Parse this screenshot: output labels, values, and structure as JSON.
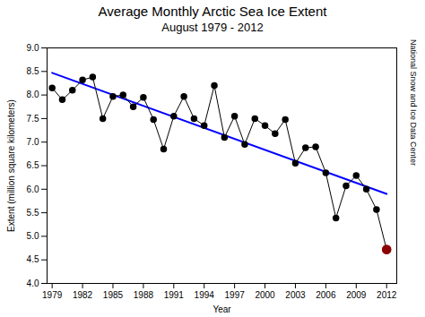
{
  "chart_data": {
    "type": "line",
    "title": "Average Monthly Arctic Sea Ice Extent",
    "subtitle": "August 1979 - 2012",
    "x_label": "Year",
    "y_label": "Extent (million square kilometers)",
    "annotation": "National Snow and Ice Data Center",
    "x": [
      1979,
      1980,
      1981,
      1982,
      1983,
      1984,
      1985,
      1986,
      1987,
      1988,
      1989,
      1990,
      1991,
      1992,
      1993,
      1994,
      1995,
      1996,
      1997,
      1998,
      1999,
      2000,
      2001,
      2002,
      2003,
      2004,
      2005,
      2006,
      2007,
      2008,
      2009,
      2010,
      2011,
      2012
    ],
    "series": [
      {
        "color": "#000000",
        "marker": "circle",
        "values": [
          8.15,
          7.9,
          8.1,
          8.32,
          8.38,
          7.5,
          7.97,
          8.0,
          7.75,
          7.95,
          7.48,
          6.85,
          7.55,
          7.97,
          7.5,
          7.35,
          8.2,
          7.1,
          7.55,
          6.95,
          7.5,
          7.35,
          7.18,
          7.48,
          6.55,
          6.88,
          6.9,
          6.35,
          5.39,
          6.07,
          6.29,
          6.0,
          5.57,
          4.72
        ],
        "colors": [
          "#000000",
          "#000000",
          "#000000",
          "#000000",
          "#000000",
          "#000000",
          "#000000",
          "#000000",
          "#000000",
          "#000000",
          "#000000",
          "#000000",
          "#000000",
          "#000000",
          "#000000",
          "#000000",
          "#000000",
          "#000000",
          "#000000",
          "#000000",
          "#000000",
          "#000000",
          "#000000",
          "#000000",
          "#000000",
          "#000000",
          "#000000",
          "#000000",
          "#000000",
          "#000000",
          "#000000",
          "#000000",
          "#000000",
          "#8B0000"
        ]
      },
      {
        "color": "#0000FF",
        "x": [
          1979,
          2012
        ],
        "values": [
          8.47,
          5.9
        ]
      }
    ],
    "xlim": [
      1978.5,
      2013.0
    ],
    "ylim": [
      4.0,
      9.0
    ],
    "xticks": [
      1979,
      1982,
      1985,
      1988,
      1991,
      1994,
      1997,
      2000,
      2003,
      2006,
      2009,
      2012
    ],
    "yticks": [
      {
        "value": 4.0,
        "label": "4.0"
      },
      {
        "value": 4.5,
        "label": "4.5"
      },
      {
        "value": 5.0,
        "label": "5.0"
      },
      {
        "value": 5.5,
        "label": "5.5"
      },
      {
        "value": 6.0,
        "label": "6.0"
      },
      {
        "value": 6.5,
        "label": "6.5"
      },
      {
        "value": 7.0,
        "label": "7.0"
      },
      {
        "value": 7.5,
        "label": "7.5"
      },
      {
        "value": 8.0,
        "label": "8.0"
      },
      {
        "value": 8.5,
        "label": "8.5"
      },
      {
        "value": 9.0,
        "label": "9.0"
      }
    ],
    "grid": false
  }
}
